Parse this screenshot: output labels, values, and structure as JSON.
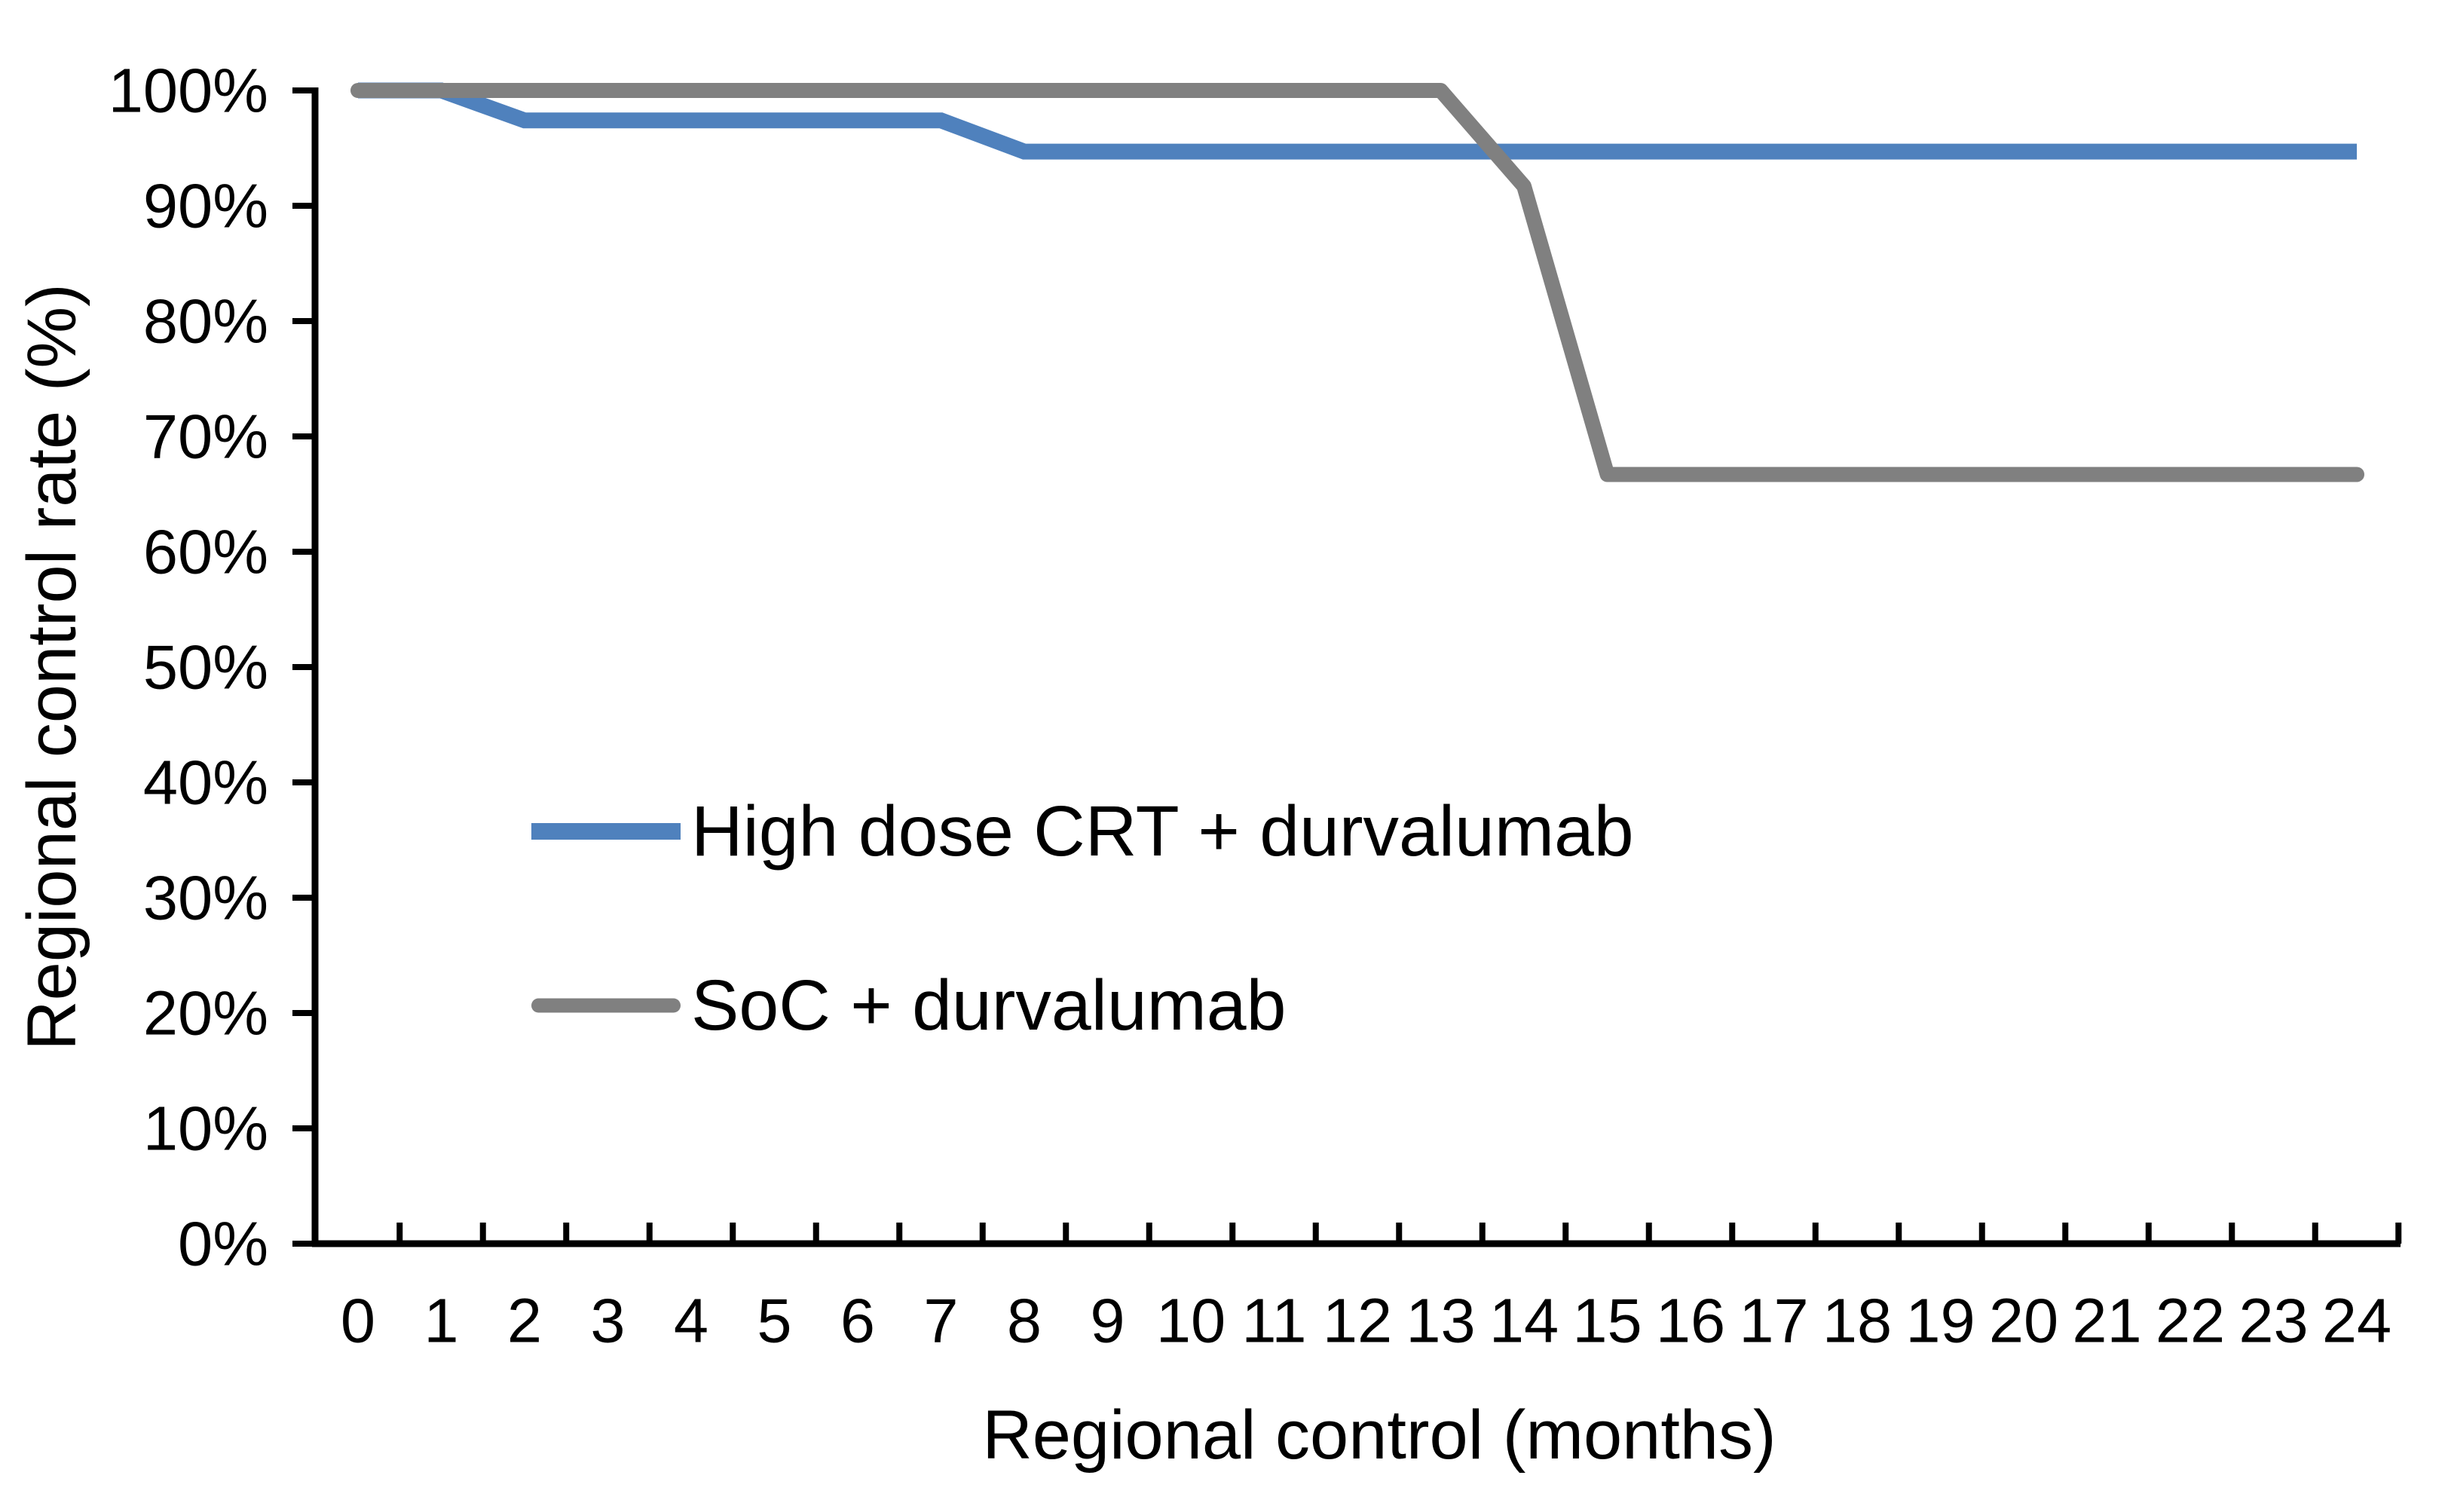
{
  "chart_data": {
    "type": "line",
    "title": "",
    "xlabel": "Regional control (months)",
    "ylabel": "Regional control rate (%)",
    "xlim": [
      0,
      24
    ],
    "ylim": [
      0,
      100
    ],
    "grid": false,
    "legend_position": "inside-center-left",
    "x": [
      0,
      1,
      2,
      3,
      4,
      5,
      6,
      7,
      8,
      9,
      10,
      11,
      12,
      13,
      14,
      15,
      16,
      17,
      18,
      19,
      20,
      21,
      22,
      23,
      24
    ],
    "x_tick_labels": [
      "0",
      "1",
      "2",
      "3",
      "4",
      "5",
      "6",
      "7",
      "8",
      "9",
      "10",
      "11",
      "12",
      "13",
      "14",
      "15",
      "16",
      "17",
      "18",
      "19",
      "20",
      "21",
      "22",
      "23",
      "24"
    ],
    "y_tick_labels": [
      "0%",
      "10%",
      "20%",
      "30%",
      "40%",
      "50%",
      "60%",
      "70%",
      "80%",
      "90%",
      "100%"
    ],
    "y_tick_values": [
      0,
      10,
      20,
      30,
      40,
      50,
      60,
      70,
      80,
      90,
      100
    ],
    "series": [
      {
        "name": "High dose CRT + durvalumab",
        "color": "#4F81BD",
        "linecap": "butt",
        "values": [
          100,
          100,
          97.4,
          97.4,
          97.4,
          97.4,
          97.4,
          97.4,
          94.7,
          94.7,
          94.7,
          94.7,
          94.7,
          94.7,
          94.7,
          94.7,
          94.7,
          94.7,
          94.7,
          94.7,
          94.7,
          94.7,
          94.7,
          94.7,
          94.7
        ]
      },
      {
        "name": "SoC + durvalumab",
        "color": "#808080",
        "linecap": "round",
        "values": [
          100,
          100,
          100,
          100,
          100,
          100,
          100,
          100,
          100,
          100,
          100,
          100,
          100,
          100,
          91.7,
          66.7,
          66.7,
          66.7,
          66.7,
          66.7,
          66.7,
          66.7,
          66.7,
          66.7,
          66.7
        ]
      }
    ],
    "axis_color": "#000000"
  }
}
